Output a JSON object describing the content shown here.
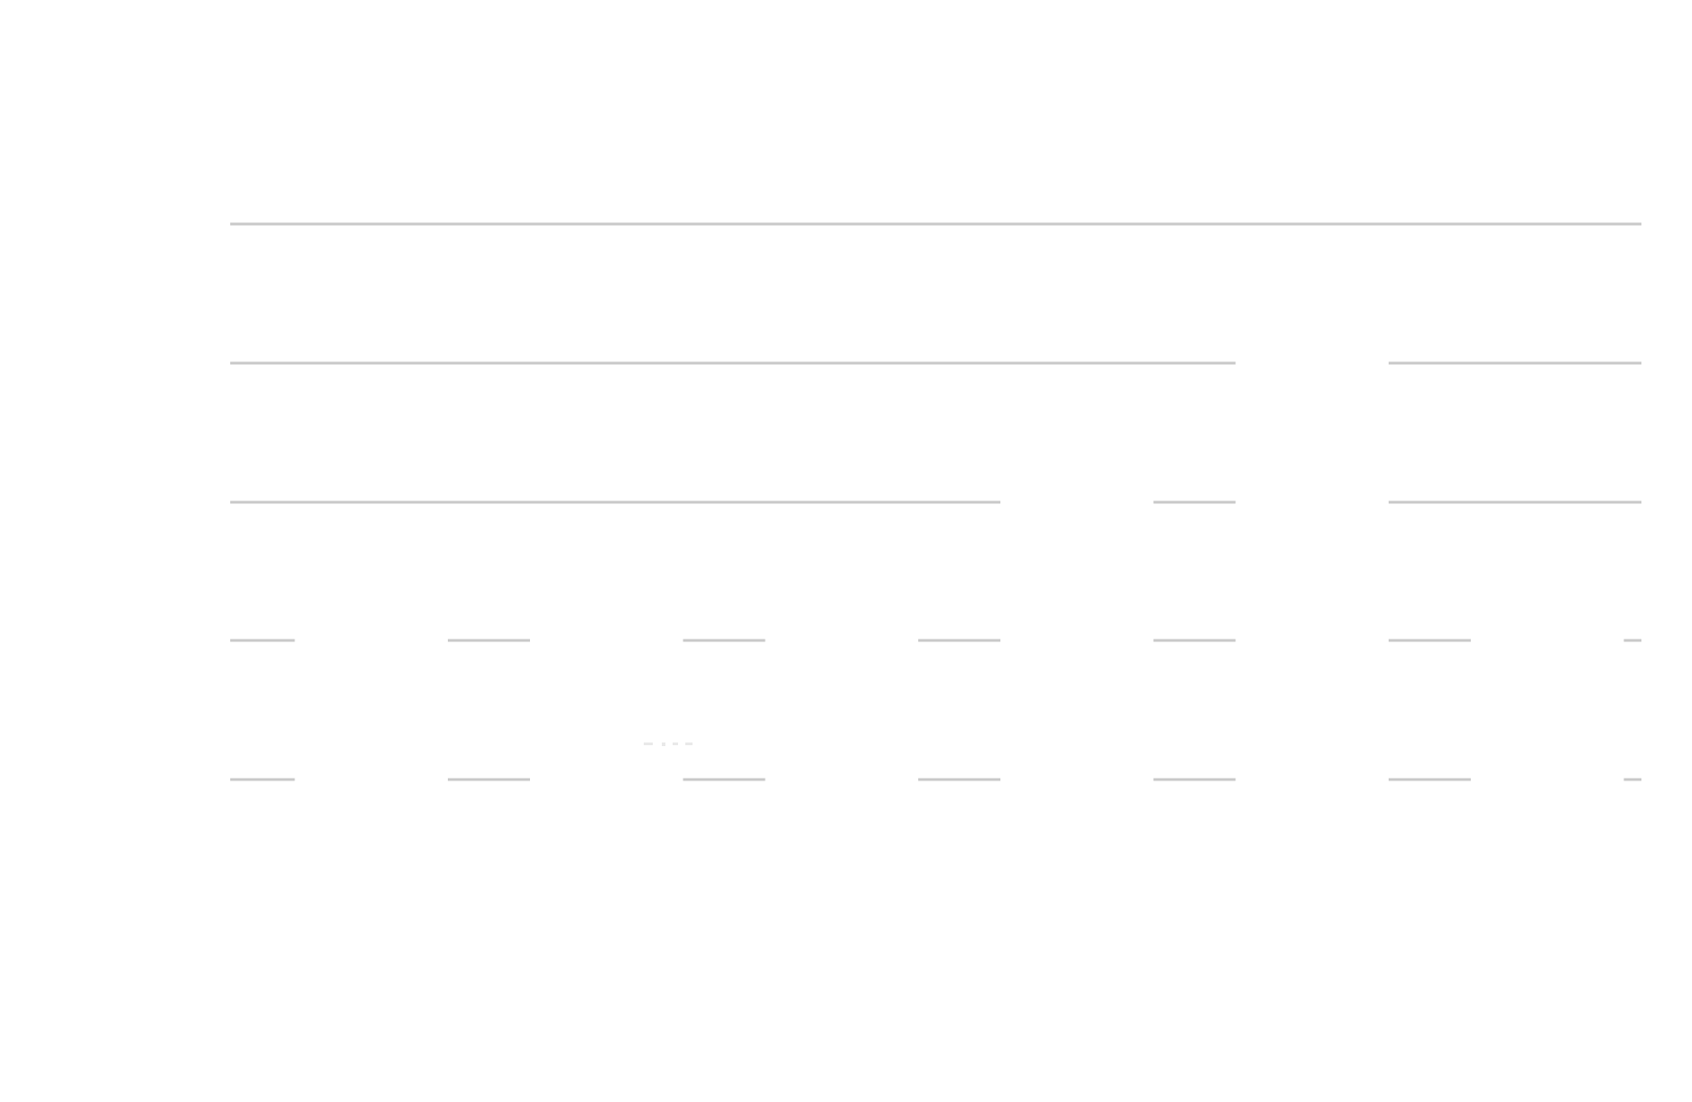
{
  "chart_data": {
    "type": "bar",
    "title": "",
    "xlabel": "",
    "ylabel": "",
    "categories": [
      "",
      "",
      "",
      "",
      "",
      ""
    ],
    "series": [
      {
        "values": [
          2.0,
          2.0,
          2.2,
          3.0,
          4.0,
          2.0
        ]
      }
    ],
    "ylim": [
      0,
      5
    ],
    "y_gridlines": [
      1,
      2,
      3,
      4,
      5
    ],
    "grid": true,
    "legend": "none",
    "colors": {
      "background": "#ffffff",
      "bar": "#ffffff",
      "gridline": "#c9c9c9"
    }
  }
}
